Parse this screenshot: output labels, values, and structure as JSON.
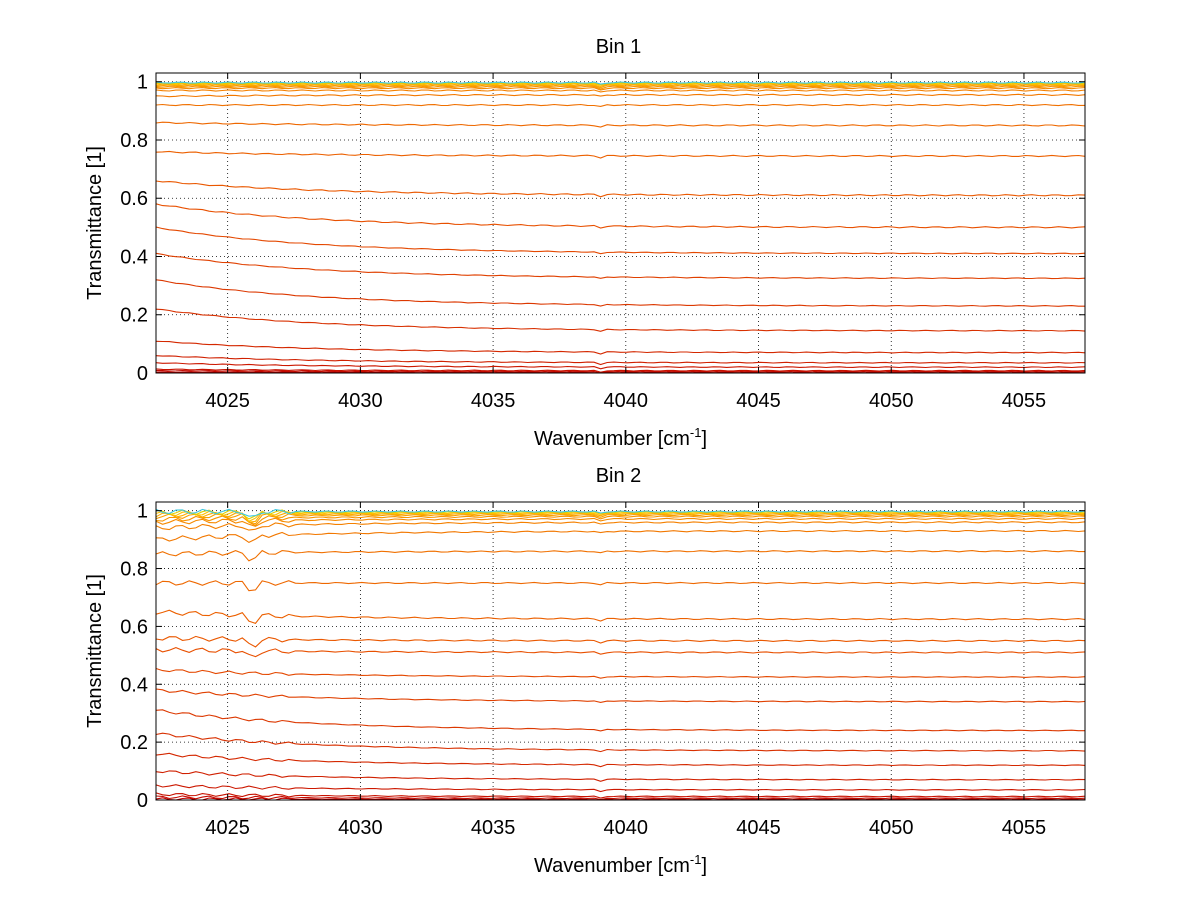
{
  "chart_data": [
    {
      "type": "line",
      "title": "Bin 1",
      "xlabel": "Wavenumber [cm",
      "xlabel_sup": "-1",
      "xlabel_end": "]",
      "ylabel": "Transmittance [1]",
      "xlim": [
        4022.3,
        4057.3
      ],
      "ylim": [
        0,
        1.03
      ],
      "xticks": [
        4025,
        4030,
        4035,
        4040,
        4045,
        4050,
        4055
      ],
      "xtick_labels": [
        "4025",
        "4030",
        "4035",
        "4040",
        "4045",
        "4050",
        "4055"
      ],
      "yticks": [
        0,
        0.2,
        0.4,
        0.6,
        0.8,
        1
      ],
      "ytick_labels": [
        "0",
        "0.2",
        "0.4",
        "0.6",
        "0.8",
        "1"
      ],
      "grid": true,
      "series_note": "family of transmittance spectra, colored dark red (low) to orange/yellow (high)",
      "series": [
        {
          "color": "#c00000",
          "start": 0.003,
          "end": 0.002
        },
        {
          "color": "#c40a00",
          "start": 0.008,
          "end": 0.005
        },
        {
          "color": "#c81200",
          "start": 0.013,
          "end": 0.008
        },
        {
          "color": "#cc1800",
          "start": 0.035,
          "end": 0.02
        },
        {
          "color": "#d02000",
          "start": 0.06,
          "end": 0.035
        },
        {
          "color": "#d42800",
          "start": 0.11,
          "end": 0.07
        },
        {
          "color": "#d83000",
          "start": 0.22,
          "end": 0.145
        },
        {
          "color": "#dc3800",
          "start": 0.32,
          "end": 0.23
        },
        {
          "color": "#e04000",
          "start": 0.41,
          "end": 0.325
        },
        {
          "color": "#e44800",
          "start": 0.5,
          "end": 0.41
        },
        {
          "color": "#e85000",
          "start": 0.58,
          "end": 0.5
        },
        {
          "color": "#ea5800",
          "start": 0.66,
          "end": 0.61
        },
        {
          "color": "#ec6000",
          "start": 0.76,
          "end": 0.745
        },
        {
          "color": "#ee6800",
          "start": 0.86,
          "end": 0.85
        },
        {
          "color": "#f07000",
          "start": 0.92,
          "end": 0.92
        },
        {
          "color": "#f27800",
          "start": 0.95,
          "end": 0.955
        },
        {
          "color": "#f48000",
          "start": 0.97,
          "end": 0.97
        },
        {
          "color": "#f68a00",
          "start": 0.978,
          "end": 0.978
        },
        {
          "color": "#f89400",
          "start": 0.983,
          "end": 0.983
        },
        {
          "color": "#faa000",
          "start": 0.987,
          "end": 0.987
        },
        {
          "color": "#fcae00",
          "start": 0.99,
          "end": 0.99
        },
        {
          "color": "#fec000",
          "start": 0.993,
          "end": 0.993
        },
        {
          "color": "#e0d000",
          "start": 0.995,
          "end": 0.995
        },
        {
          "color": "#40c8e0",
          "start": 0.997,
          "end": 0.997
        }
      ]
    },
    {
      "type": "line",
      "title": "Bin 2",
      "xlabel": "Wavenumber [cm",
      "xlabel_sup": "-1",
      "xlabel_end": "]",
      "ylabel": "Transmittance [1]",
      "xlim": [
        4022.3,
        4057.3
      ],
      "ylim": [
        0,
        1.03
      ],
      "xticks": [
        4025,
        4030,
        4035,
        4040,
        4045,
        4050,
        4055
      ],
      "xtick_labels": [
        "4025",
        "4030",
        "4035",
        "4040",
        "4045",
        "4050",
        "4055"
      ],
      "yticks": [
        0,
        0.2,
        0.4,
        0.6,
        0.8,
        1
      ],
      "ytick_labels": [
        "0",
        "0.2",
        "0.4",
        "0.6",
        "0.8",
        "1"
      ],
      "grid": true,
      "series_note": "family of transmittance spectra, colored dark red (low) to orange/yellow (high)",
      "series": [
        {
          "color": "#c00000",
          "start": 0.003,
          "end": 0.002
        },
        {
          "color": "#c40a00",
          "start": 0.01,
          "end": 0.006
        },
        {
          "color": "#c81200",
          "start": 0.02,
          "end": 0.012
        },
        {
          "color": "#cc1800",
          "start": 0.05,
          "end": 0.035
        },
        {
          "color": "#d02000",
          "start": 0.1,
          "end": 0.07
        },
        {
          "color": "#d42800",
          "start": 0.16,
          "end": 0.12
        },
        {
          "color": "#d83000",
          "start": 0.23,
          "end": 0.17
        },
        {
          "color": "#dc3800",
          "start": 0.31,
          "end": 0.24
        },
        {
          "color": "#e04000",
          "start": 0.38,
          "end": 0.34
        },
        {
          "color": "#e44800",
          "start": 0.45,
          "end": 0.425
        },
        {
          "color": "#e85000",
          "start": 0.52,
          "end": 0.51
        },
        {
          "color": "#ea5800",
          "start": 0.56,
          "end": 0.55
        },
        {
          "color": "#ec6000",
          "start": 0.65,
          "end": 0.625
        },
        {
          "color": "#ee6800",
          "start": 0.75,
          "end": 0.75
        },
        {
          "color": "#f07000",
          "start": 0.85,
          "end": 0.86
        },
        {
          "color": "#f27800",
          "start": 0.9,
          "end": 0.93
        },
        {
          "color": "#f48000",
          "start": 0.94,
          "end": 0.96
        },
        {
          "color": "#f68a00",
          "start": 0.96,
          "end": 0.972
        },
        {
          "color": "#f89400",
          "start": 0.97,
          "end": 0.98
        },
        {
          "color": "#faa000",
          "start": 0.98,
          "end": 0.985
        },
        {
          "color": "#fcae00",
          "start": 0.985,
          "end": 0.989
        },
        {
          "color": "#fec000",
          "start": 0.99,
          "end": 0.992
        },
        {
          "color": "#e0d000",
          "start": 0.994,
          "end": 0.995
        },
        {
          "color": "#40c8e0",
          "start": 0.997,
          "end": 0.997
        }
      ]
    }
  ]
}
